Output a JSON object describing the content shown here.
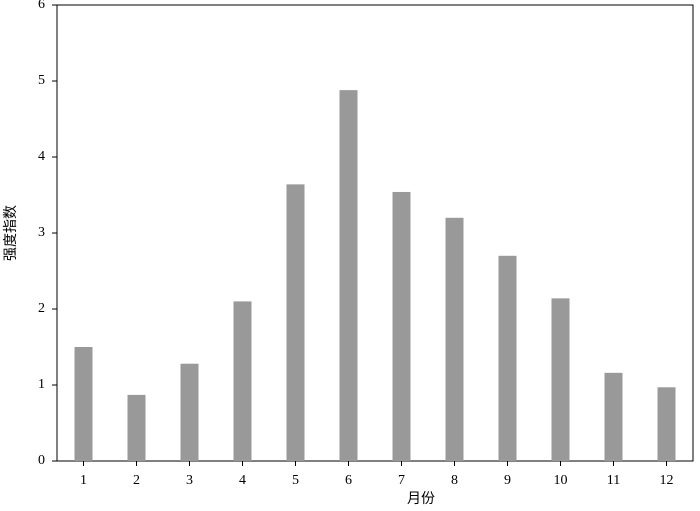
{
  "chart_data": {
    "type": "bar",
    "x_label": "月份",
    "y_label": "强度指数",
    "categories": [
      "1",
      "2",
      "3",
      "4",
      "5",
      "6",
      "7",
      "8",
      "9",
      "10",
      "11",
      "12"
    ],
    "values": [
      1.5,
      0.87,
      1.28,
      2.1,
      3.64,
      4.88,
      3.54,
      3.2,
      2.7,
      2.14,
      1.16,
      0.97
    ],
    "color": "#999999",
    "ylim": [
      0,
      6
    ],
    "yticks": [
      0,
      1,
      2,
      3,
      4,
      5,
      6
    ],
    "grid": false
  }
}
